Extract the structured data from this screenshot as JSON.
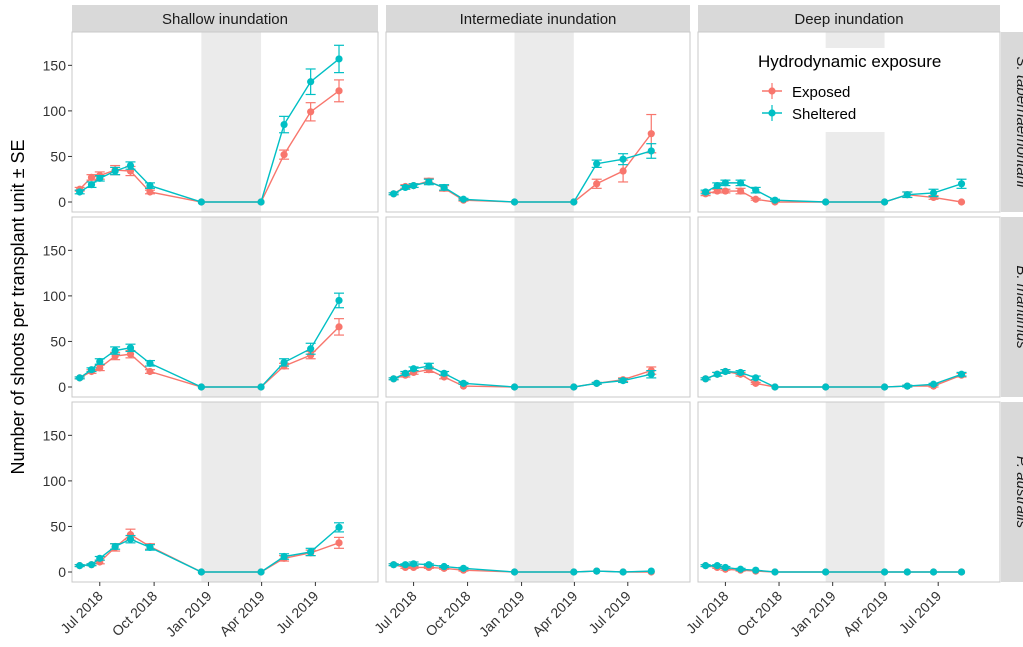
{
  "chart_data": {
    "type": "line",
    "title": "",
    "ylabel": "Number of shoots per transplant unit ± SE",
    "xlabel": "",
    "ylim": [
      0,
      180
    ],
    "y_ticks": [
      0,
      50,
      100,
      150
    ],
    "x_range": [
      "2018-05-15",
      "2019-10-15"
    ],
    "x_ticks": [
      {
        "date": "2018-07-01",
        "label": "Jul 2018"
      },
      {
        "date": "2018-10-01",
        "label": "Oct 2018"
      },
      {
        "date": "2019-01-01",
        "label": "Jan 2019"
      },
      {
        "date": "2019-04-01",
        "label": "Apr 2019"
      },
      {
        "date": "2019-07-01",
        "label": "Jul 2019"
      }
    ],
    "shaded_period": [
      "2018-12-20",
      "2019-03-31"
    ],
    "columns": [
      "Shallow inundation",
      "Intermediate inundation",
      "Deep inundation"
    ],
    "rows": [
      "S. tabernaemontani",
      "B. maritimus",
      "P. australis"
    ],
    "legend": {
      "title": "Hydrodynamic exposure",
      "position": "top-right",
      "entries": [
        {
          "name": "Exposed",
          "color": "#F8766D"
        },
        {
          "name": "Sheltered",
          "color": "#00BFC4"
        }
      ]
    },
    "dates": [
      "2018-05-28",
      "2018-06-17",
      "2018-07-01",
      "2018-07-27",
      "2018-08-22",
      "2018-09-24",
      "2018-12-20",
      "2019-03-31",
      "2019-05-09",
      "2019-06-23",
      "2019-08-10"
    ],
    "panels": [
      {
        "row": 0,
        "col": 0,
        "exposed": {
          "y": [
            14,
            27,
            29,
            35,
            34,
            11,
            0,
            0,
            52,
            99,
            122
          ],
          "se": [
            2,
            3,
            4,
            5,
            5,
            2,
            0,
            0,
            5,
            10,
            12
          ]
        },
        "sheltered": {
          "y": [
            11,
            19,
            26,
            34,
            40,
            18,
            0,
            0,
            85,
            132,
            157
          ],
          "se": [
            2,
            3,
            3,
            4,
            4,
            3,
            0,
            0,
            9,
            14,
            15
          ]
        }
      },
      {
        "row": 0,
        "col": 1,
        "exposed": {
          "y": [
            9,
            17,
            18,
            23,
            15,
            2,
            0,
            0,
            20,
            34,
            75
          ],
          "se": [
            1,
            2,
            2,
            3,
            3,
            1,
            0,
            0,
            5,
            12,
            21
          ]
        },
        "sheltered": {
          "y": [
            9,
            16,
            18,
            22,
            16,
            3,
            0,
            0,
            42,
            47,
            56
          ],
          "se": [
            1,
            2,
            2,
            3,
            3,
            1,
            0,
            0,
            4,
            6,
            8
          ]
        }
      },
      {
        "row": 0,
        "col": 2,
        "exposed": {
          "y": [
            9,
            12,
            12,
            12,
            3,
            0,
            0,
            0,
            8,
            5,
            0
          ],
          "se": [
            2,
            2,
            2,
            3,
            1,
            0,
            0,
            0,
            3,
            2,
            0
          ]
        },
        "sheltered": {
          "y": [
            11,
            18,
            21,
            21,
            13,
            2,
            0,
            0,
            8,
            10,
            20
          ],
          "se": [
            2,
            3,
            3,
            3,
            3,
            1,
            0,
            0,
            3,
            4,
            5
          ]
        }
      },
      {
        "row": 1,
        "col": 0,
        "exposed": {
          "y": [
            10,
            17,
            21,
            34,
            36,
            17,
            0,
            0,
            23,
            35,
            66
          ],
          "se": [
            1,
            2,
            3,
            4,
            4,
            2,
            0,
            0,
            3,
            4,
            9
          ]
        },
        "sheltered": {
          "y": [
            10,
            19,
            28,
            40,
            43,
            26,
            0,
            0,
            27,
            42,
            95
          ],
          "se": [
            1,
            2,
            3,
            4,
            4,
            3,
            0,
            0,
            4,
            6,
            8
          ]
        }
      },
      {
        "row": 1,
        "col": 1,
        "exposed": {
          "y": [
            9,
            13,
            16,
            19,
            11,
            1,
            0,
            0,
            4,
            8,
            18
          ],
          "se": [
            1,
            2,
            2,
            3,
            2,
            0,
            0,
            0,
            1,
            2,
            4
          ]
        },
        "sheltered": {
          "y": [
            9,
            15,
            20,
            23,
            15,
            4,
            0,
            0,
            4,
            7,
            14
          ],
          "se": [
            1,
            2,
            2,
            3,
            2,
            1,
            0,
            0,
            1,
            2,
            4
          ]
        }
      },
      {
        "row": 1,
        "col": 2,
        "exposed": {
          "y": [
            9,
            14,
            17,
            14,
            4,
            0,
            0,
            0,
            1,
            1,
            13
          ],
          "se": [
            1,
            2,
            2,
            2,
            1,
            0,
            0,
            0,
            1,
            1,
            2
          ]
        },
        "sheltered": {
          "y": [
            9,
            14,
            17,
            16,
            10,
            0,
            0,
            0,
            1,
            3,
            14
          ],
          "se": [
            1,
            2,
            2,
            2,
            2,
            0,
            0,
            0,
            1,
            1,
            2
          ]
        }
      },
      {
        "row": 2,
        "col": 0,
        "exposed": {
          "y": [
            7,
            8,
            11,
            27,
            41,
            28,
            0,
            0,
            15,
            21,
            32
          ],
          "se": [
            1,
            1,
            2,
            4,
            6,
            3,
            0,
            0,
            3,
            3,
            6
          ]
        },
        "sheltered": {
          "y": [
            7,
            8,
            15,
            28,
            36,
            27,
            0,
            0,
            17,
            22,
            49
          ],
          "se": [
            1,
            1,
            2,
            3,
            4,
            3,
            0,
            0,
            3,
            4,
            5
          ]
        }
      },
      {
        "row": 2,
        "col": 1,
        "exposed": {
          "y": [
            8,
            5,
            5,
            5,
            4,
            2,
            0,
            0,
            1,
            0,
            0
          ],
          "se": [
            1,
            1,
            1,
            1,
            1,
            1,
            0,
            0,
            0,
            0,
            0
          ]
        },
        "sheltered": {
          "y": [
            8,
            8,
            9,
            8,
            6,
            4,
            0,
            0,
            1,
            0,
            1
          ],
          "se": [
            1,
            1,
            2,
            1,
            1,
            1,
            0,
            0,
            0,
            0,
            0
          ]
        }
      },
      {
        "row": 2,
        "col": 2,
        "exposed": {
          "y": [
            7,
            5,
            3,
            2,
            1,
            0,
            0,
            0,
            0,
            0,
            0
          ],
          "se": [
            1,
            1,
            1,
            1,
            0,
            0,
            0,
            0,
            0,
            0,
            0
          ]
        },
        "sheltered": {
          "y": [
            7,
            7,
            5,
            3,
            2,
            0,
            0,
            0,
            0,
            0,
            0
          ],
          "se": [
            1,
            1,
            1,
            1,
            0,
            0,
            0,
            0,
            0,
            0,
            0
          ]
        }
      }
    ]
  }
}
